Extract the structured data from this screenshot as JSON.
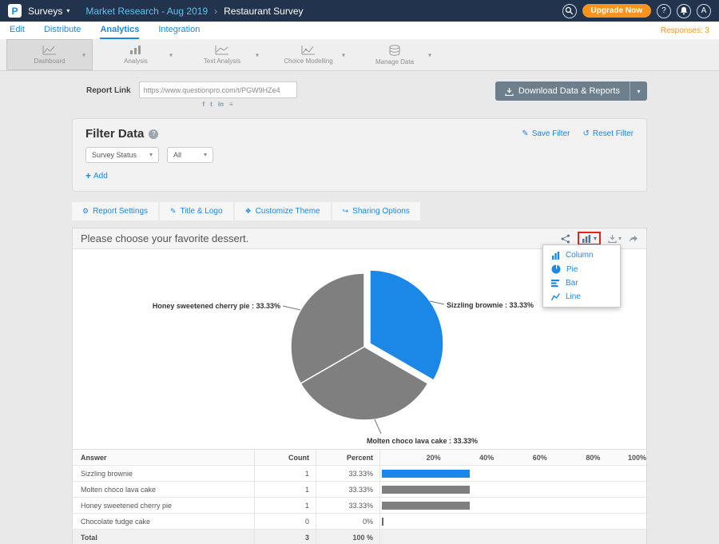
{
  "topbar": {
    "logo_letter": "P",
    "product_menu": "Surveys",
    "breadcrumb_parent": "Market Research - Aug 2019",
    "breadcrumb_current": "Restaurant Survey",
    "upgrade_label": "Upgrade Now",
    "avatar_letter": "A"
  },
  "nav": {
    "items": [
      {
        "label": "Edit"
      },
      {
        "label": "Distribute"
      },
      {
        "label": "Analytics"
      },
      {
        "label": "Integration"
      }
    ],
    "active": "Analytics",
    "responses_label": "Responses: 3"
  },
  "toolbar": {
    "tabs": [
      {
        "label": "Dashboard"
      },
      {
        "label": "Analysis"
      },
      {
        "label": "Text Analysis"
      },
      {
        "label": "Choice Modelling"
      },
      {
        "label": "Manage Data"
      }
    ],
    "active": "Dashboard"
  },
  "report": {
    "link_label": "Report Link",
    "link_url": "https://www.questionpro.com/t/PGW9HZe4",
    "download_label": "Download Data & Reports"
  },
  "filter": {
    "title": "Filter Data",
    "save_label": "Save Filter",
    "reset_label": "Reset Filter",
    "status_select_value": "Survey Status",
    "value_select_value": "All",
    "add_label": "Add"
  },
  "settings_tabs": [
    {
      "label": "Report Settings"
    },
    {
      "label": "Title & Logo"
    },
    {
      "label": "Customize Theme"
    },
    {
      "label": "Sharing Options"
    }
  ],
  "card": {
    "title": "Please choose your favorite dessert.",
    "menu_items": [
      {
        "label": "Column"
      },
      {
        "label": "Pie"
      },
      {
        "label": "Bar"
      },
      {
        "label": "Line"
      }
    ]
  },
  "chart_data": {
    "type": "pie",
    "title": "Please choose your favorite dessert.",
    "slices": [
      {
        "label": "Sizzling brownie",
        "value": 33.33,
        "color": "#1B87E6",
        "exploded": true
      },
      {
        "label": "Molten choco lava cake",
        "value": 33.33,
        "color": "#7F7F7F",
        "exploded": false
      },
      {
        "label": "Honey sweetened cherry pie",
        "value": 33.33,
        "color": "#7F7F7F",
        "exploded": false
      }
    ],
    "callouts": {
      "left": "Honey sweetened cherry pie : 33.33%",
      "right": "Sizzling brownie : 33.33%",
      "bottom": "Molten choco lava cake : 33.33%"
    },
    "legend_position": "none"
  },
  "table": {
    "headers": {
      "answer": "Answer",
      "count": "Count",
      "percent": "Percent"
    },
    "axis_ticks": [
      "20%",
      "40%",
      "60%",
      "80%",
      "100%"
    ],
    "rows": [
      {
        "answer": "Sizzling brownie",
        "count": "1",
        "percent": "33.33%",
        "bar_pct": 33.33,
        "bar_color": "#1B87E6"
      },
      {
        "answer": "Molten choco lava cake",
        "count": "1",
        "percent": "33.33%",
        "bar_pct": 33.33,
        "bar_color": "#7F7F7F"
      },
      {
        "answer": "Honey sweetened cherry pie",
        "count": "1",
        "percent": "33.33%",
        "bar_pct": 33.33,
        "bar_color": "#7F7F7F"
      },
      {
        "answer": "Chocolate fudge cake",
        "count": "0",
        "percent": "0%",
        "bar_pct": 0.6,
        "bar_color": "#666666"
      }
    ],
    "total": {
      "label": "Total",
      "count": "3",
      "percent": "100 %"
    }
  },
  "icons": {
    "caret_down": "▾",
    "breadcrumb_sep": "›",
    "question": "?",
    "facebook": "f",
    "twitter": "t",
    "linkedin": "in",
    "feed": "≡",
    "pencil": "✎",
    "reset": "↺",
    "plus": "+",
    "gear": "⚙",
    "tag": "✎",
    "theme": "❖",
    "share": "↪"
  },
  "colors": {
    "accent_blue": "#1B87E6",
    "orange": "#F7941E",
    "topbar_bg": "#22334e",
    "pie_gray": "#7F7F7F"
  }
}
